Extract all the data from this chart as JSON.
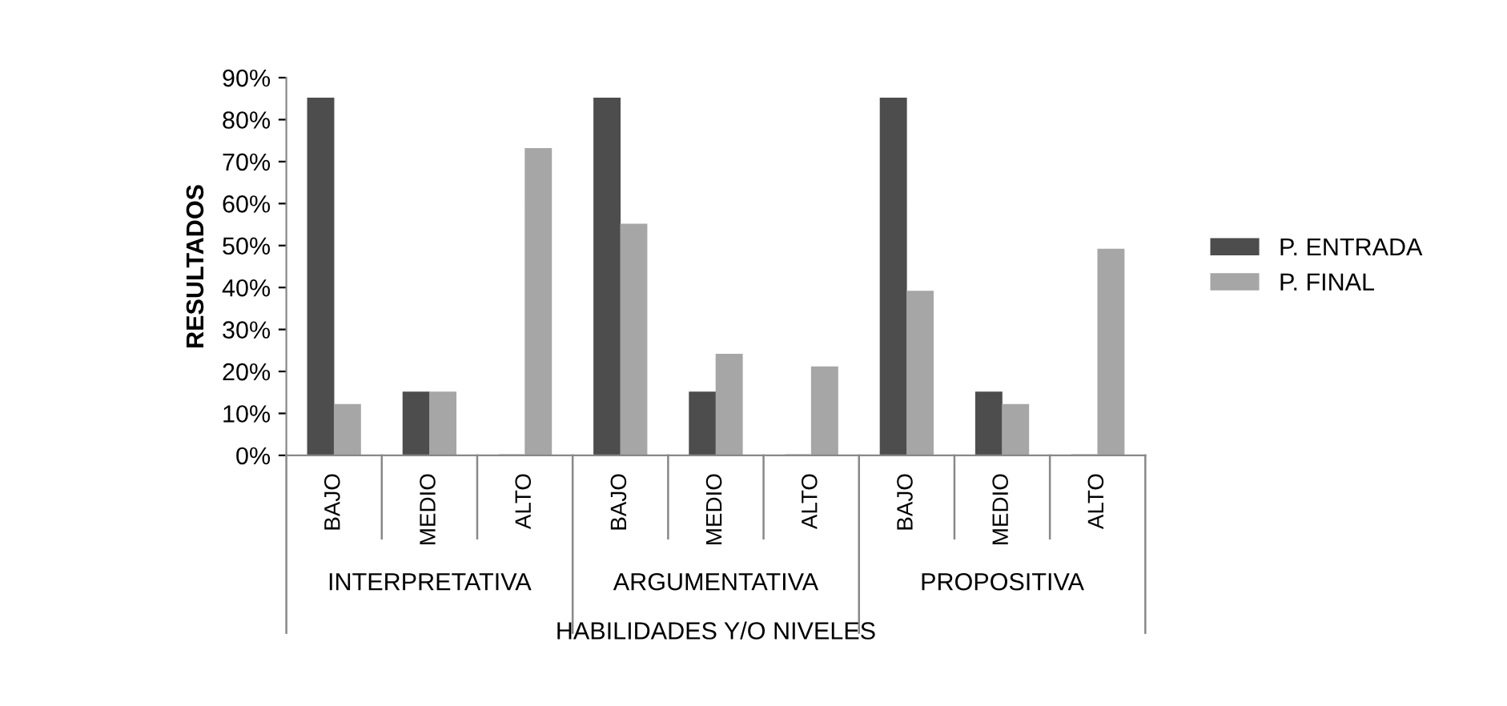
{
  "chart_data": {
    "type": "bar",
    "ylabel": "RESULTADOS",
    "xlabel": "HABILIDADES Y/O NIVELES",
    "categories": [
      "BAJO",
      "MEDIO",
      "ALTO",
      "BAJO",
      "MEDIO",
      "ALTO",
      "BAJO",
      "MEDIO",
      "ALTO"
    ],
    "annotations": [
      "INTERPRETATIVA",
      "ARGUMENTATIVA",
      "PROPOSITIVA"
    ],
    "series": [
      {
        "name": "P. ENTRADA",
        "color": "#4d4d4d",
        "values": [
          85,
          15,
          0,
          85,
          15,
          0,
          85,
          15,
          0
        ]
      },
      {
        "name": "P. FINAL",
        "color": "#a6a6a6",
        "values": [
          12,
          15,
          73,
          55,
          24,
          21,
          39,
          12,
          49
        ]
      }
    ],
    "ylim": [
      0,
      90
    ],
    "yticks": [
      {
        "value": 0,
        "label": "0%"
      },
      {
        "value": 10,
        "label": "10%"
      },
      {
        "value": 20,
        "label": "20%"
      },
      {
        "value": 30,
        "label": "30%"
      },
      {
        "value": 40,
        "label": "40%"
      },
      {
        "value": 50,
        "label": "50%"
      },
      {
        "value": 60,
        "label": "60%"
      },
      {
        "value": 70,
        "label": "70%"
      },
      {
        "value": 80,
        "label": "80%"
      },
      {
        "value": 90,
        "label": "90%"
      }
    ],
    "legend": "right",
    "grid": false
  }
}
